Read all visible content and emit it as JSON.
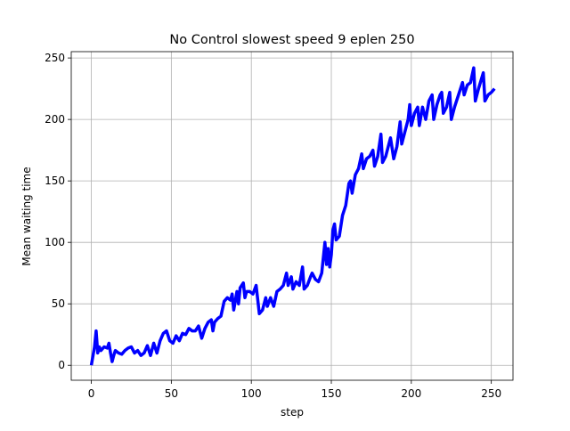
{
  "chart_data": {
    "type": "line",
    "title": "No Control slowest speed 9 eplen 250",
    "xlabel": "step",
    "ylabel": "Mean waiting time",
    "x": [
      0,
      2,
      3,
      4,
      5,
      6,
      8,
      10,
      11,
      12,
      13,
      14,
      15,
      17,
      19,
      21,
      23,
      25,
      27,
      29,
      31,
      33,
      35,
      37,
      39,
      41,
      43,
      45,
      47,
      49,
      51,
      53,
      55,
      57,
      59,
      61,
      63,
      65,
      67,
      69,
      71,
      73,
      75,
      76,
      77,
      79,
      81,
      83,
      85,
      87,
      88,
      89,
      91,
      92,
      93,
      95,
      96,
      97,
      99,
      101,
      103,
      105,
      107,
      109,
      110,
      112,
      114,
      116,
      118,
      120,
      122,
      123,
      125,
      126,
      128,
      130,
      132,
      133,
      135,
      137,
      138,
      140,
      142,
      144,
      146,
      147,
      148,
      149,
      150,
      151,
      152,
      153,
      155,
      157,
      159,
      161,
      162,
      163,
      165,
      167,
      169,
      170,
      172,
      174,
      176,
      177,
      179,
      181,
      182,
      184,
      186,
      187,
      189,
      191,
      193,
      194,
      196,
      198,
      199,
      200,
      202,
      204,
      205,
      207,
      209,
      211,
      213,
      214,
      216,
      218,
      219,
      220,
      222,
      224,
      225,
      227,
      232,
      233,
      235,
      237,
      239,
      240,
      242,
      245,
      246,
      248,
      250,
      252
    ],
    "series": [
      {
        "name": "Mean waiting time",
        "color": "#0000ff",
        "values": [
          0,
          15,
          28,
          10,
          15,
          12,
          15,
          14,
          18,
          10,
          3,
          8,
          12,
          10,
          9,
          12,
          14,
          15,
          10,
          12,
          8,
          10,
          16,
          8,
          18,
          10,
          20,
          26,
          28,
          20,
          18,
          24,
          20,
          26,
          25,
          30,
          28,
          28,
          32,
          22,
          30,
          35,
          37,
          28,
          35,
          38,
          40,
          52,
          55,
          53,
          58,
          45,
          60,
          50,
          63,
          67,
          55,
          60,
          60,
          58,
          65,
          42,
          45,
          55,
          48,
          55,
          48,
          60,
          62,
          65,
          75,
          65,
          72,
          62,
          68,
          65,
          80,
          62,
          65,
          72,
          75,
          70,
          68,
          75,
          100,
          82,
          95,
          80,
          90,
          110,
          115,
          102,
          105,
          122,
          130,
          148,
          150,
          140,
          155,
          160,
          172,
          160,
          168,
          170,
          175,
          162,
          170,
          188,
          165,
          170,
          180,
          185,
          168,
          178,
          198,
          180,
          190,
          200,
          212,
          195,
          205,
          210,
          195,
          210,
          200,
          215,
          220,
          200,
          212,
          220,
          222,
          205,
          210,
          222,
          200,
          210,
          230,
          220,
          228,
          230,
          242,
          215,
          225,
          238,
          215,
          220,
          222,
          225
        ]
      }
    ],
    "xlim": [
      -12.55,
      263.55
    ],
    "ylim": [
      -12.15,
      255.15
    ],
    "xticks": [
      0,
      50,
      100,
      150,
      200,
      250
    ],
    "yticks": [
      0,
      50,
      100,
      150,
      200,
      250
    ],
    "grid": true
  }
}
